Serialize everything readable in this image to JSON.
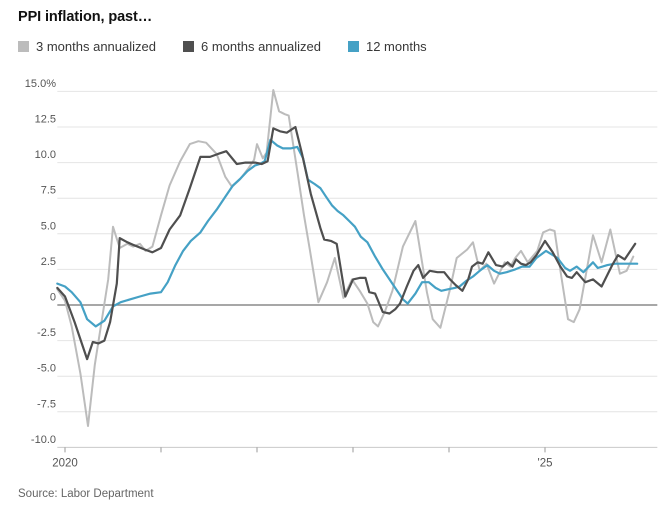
{
  "header": {
    "title": "PPI inflation, past…"
  },
  "source": {
    "text": "Source: Labor Department"
  },
  "colors": {
    "grid": "#e4e4e4",
    "zero_line": "#8a8a8a",
    "axis_line": "#c9c9c9",
    "tick": "#999999",
    "axis_label": "#555555",
    "series_3mo": "#bcbcbc",
    "series_6mo": "#4f4f4f",
    "series_12mo": "#45a1c5"
  },
  "chart_data": {
    "type": "line",
    "title": "PPI inflation, past…",
    "xlabel": "",
    "ylabel": "percent",
    "grid": "horizontal",
    "legend_position": "top",
    "ylim": [
      -10,
      15
    ],
    "xlim": [
      2019.92,
      2026.17
    ],
    "y_ticks": [
      {
        "v": 15,
        "label": "15.0%"
      },
      {
        "v": 12.5,
        "label": "12.5"
      },
      {
        "v": 10,
        "label": "10.0"
      },
      {
        "v": 7.5,
        "label": "7.5"
      },
      {
        "v": 5,
        "label": "5.0"
      },
      {
        "v": 2.5,
        "label": "2.5"
      },
      {
        "v": 0,
        "label": "0"
      },
      {
        "v": -2.5,
        "label": "-2.5"
      },
      {
        "v": -5,
        "label": "-5.0"
      },
      {
        "v": -7.5,
        "label": "-7.5"
      },
      {
        "v": -10,
        "label": "-10.0"
      }
    ],
    "x_ticks": [
      {
        "v": 2020,
        "label": "2020"
      },
      {
        "v": 2021,
        "label": ""
      },
      {
        "v": 2022,
        "label": ""
      },
      {
        "v": 2023,
        "label": ""
      },
      {
        "v": 2024,
        "label": ""
      },
      {
        "v": 2025,
        "label": "'25"
      }
    ],
    "series": [
      {
        "name": "3 months annualized",
        "color": "#bcbcbc",
        "width": 2,
        "points": [
          [
            2019.92,
            1.1
          ],
          [
            2020.0,
            0.3
          ],
          [
            2020.07,
            -1.5
          ],
          [
            2020.16,
            -4.8
          ],
          [
            2020.24,
            -8.5
          ],
          [
            2020.31,
            -4.2
          ],
          [
            2020.39,
            -0.8
          ],
          [
            2020.45,
            1.8
          ],
          [
            2020.5,
            5.5
          ],
          [
            2020.57,
            4.0
          ],
          [
            2020.65,
            4.3
          ],
          [
            2020.71,
            4.1
          ],
          [
            2020.78,
            4.3
          ],
          [
            2020.84,
            3.8
          ],
          [
            2020.91,
            4.1
          ],
          [
            2021.0,
            6.3
          ],
          [
            2021.09,
            8.4
          ],
          [
            2021.2,
            10.1
          ],
          [
            2021.3,
            11.3
          ],
          [
            2021.39,
            11.5
          ],
          [
            2021.47,
            11.4
          ],
          [
            2021.58,
            10.6
          ],
          [
            2021.67,
            9.0
          ],
          [
            2021.74,
            8.3
          ],
          [
            2021.82,
            8.8
          ],
          [
            2021.91,
            9.6
          ],
          [
            2021.97,
            10.2
          ],
          [
            2022.0,
            11.3
          ],
          [
            2022.06,
            10.3
          ],
          [
            2022.1,
            10.7
          ],
          [
            2022.17,
            15.1
          ],
          [
            2022.23,
            13.6
          ],
          [
            2022.29,
            13.4
          ],
          [
            2022.33,
            13.3
          ],
          [
            2022.42,
            9.4
          ],
          [
            2022.49,
            6.3
          ],
          [
            2022.55,
            3.9
          ],
          [
            2022.64,
            0.2
          ],
          [
            2022.73,
            1.6
          ],
          [
            2022.81,
            3.3
          ],
          [
            2022.9,
            0.5
          ],
          [
            2022.99,
            1.8
          ],
          [
            2023.07,
            1.0
          ],
          [
            2023.15,
            0.1
          ],
          [
            2023.21,
            -1.2
          ],
          [
            2023.26,
            -1.5
          ],
          [
            2023.33,
            -0.5
          ],
          [
            2023.41,
            1.0
          ],
          [
            2023.52,
            4.1
          ],
          [
            2023.65,
            5.9
          ],
          [
            2023.77,
            0.9
          ],
          [
            2023.83,
            -1.0
          ],
          [
            2023.91,
            -1.6
          ],
          [
            2024.01,
            1.1
          ],
          [
            2024.08,
            3.3
          ],
          [
            2024.19,
            3.9
          ],
          [
            2024.25,
            4.4
          ],
          [
            2024.32,
            2.4
          ],
          [
            2024.39,
            2.9
          ],
          [
            2024.47,
            1.5
          ],
          [
            2024.58,
            3.0
          ],
          [
            2024.64,
            2.7
          ],
          [
            2024.69,
            3.3
          ],
          [
            2024.75,
            3.8
          ],
          [
            2024.82,
            3.0
          ],
          [
            2024.92,
            3.8
          ],
          [
            2024.98,
            5.1
          ],
          [
            2025.05,
            5.3
          ],
          [
            2025.1,
            5.2
          ],
          [
            2025.17,
            2.0
          ],
          [
            2025.24,
            -1.0
          ],
          [
            2025.3,
            -1.2
          ],
          [
            2025.36,
            -0.3
          ],
          [
            2025.5,
            4.9
          ],
          [
            2025.59,
            3.0
          ],
          [
            2025.68,
            5.3
          ],
          [
            2025.78,
            2.2
          ],
          [
            2025.85,
            2.4
          ],
          [
            2025.92,
            3.4
          ]
        ]
      },
      {
        "name": "12 months",
        "color": "#45a1c5",
        "width": 2.2,
        "points": [
          [
            2019.92,
            1.5
          ],
          [
            2020.0,
            1.3
          ],
          [
            2020.07,
            0.9
          ],
          [
            2020.16,
            0.2
          ],
          [
            2020.23,
            -1.0
          ],
          [
            2020.32,
            -1.5
          ],
          [
            2020.41,
            -1.1
          ],
          [
            2020.5,
            -0.1
          ],
          [
            2020.58,
            0.2
          ],
          [
            2020.68,
            0.4
          ],
          [
            2020.78,
            0.6
          ],
          [
            2020.89,
            0.8
          ],
          [
            2021.0,
            0.9
          ],
          [
            2021.07,
            1.6
          ],
          [
            2021.15,
            2.8
          ],
          [
            2021.23,
            3.8
          ],
          [
            2021.31,
            4.5
          ],
          [
            2021.41,
            5.1
          ],
          [
            2021.49,
            5.9
          ],
          [
            2021.58,
            6.7
          ],
          [
            2021.67,
            7.6
          ],
          [
            2021.75,
            8.4
          ],
          [
            2021.83,
            8.9
          ],
          [
            2021.9,
            9.4
          ],
          [
            2021.98,
            9.8
          ],
          [
            2022.03,
            9.9
          ],
          [
            2022.08,
            10.1
          ],
          [
            2022.14,
            11.6
          ],
          [
            2022.21,
            11.2
          ],
          [
            2022.27,
            11.0
          ],
          [
            2022.35,
            11.0
          ],
          [
            2022.42,
            11.1
          ],
          [
            2022.48,
            10.3
          ],
          [
            2022.53,
            8.8
          ],
          [
            2022.6,
            8.5
          ],
          [
            2022.66,
            8.2
          ],
          [
            2022.72,
            7.6
          ],
          [
            2022.78,
            7.0
          ],
          [
            2022.84,
            6.6
          ],
          [
            2022.9,
            6.3
          ],
          [
            2022.96,
            5.9
          ],
          [
            2023.02,
            5.5
          ],
          [
            2023.08,
            4.8
          ],
          [
            2023.15,
            4.4
          ],
          [
            2023.23,
            3.4
          ],
          [
            2023.31,
            2.5
          ],
          [
            2023.36,
            2.0
          ],
          [
            2023.44,
            1.2
          ],
          [
            2023.52,
            0.4
          ],
          [
            2023.57,
            0.1
          ],
          [
            2023.65,
            0.8
          ],
          [
            2023.72,
            1.6
          ],
          [
            2023.79,
            1.6
          ],
          [
            2023.86,
            1.2
          ],
          [
            2023.92,
            1.0
          ],
          [
            2023.99,
            1.1
          ],
          [
            2024.06,
            1.2
          ],
          [
            2024.11,
            1.3
          ],
          [
            2024.18,
            1.7
          ],
          [
            2024.25,
            2.0
          ],
          [
            2024.32,
            2.4
          ],
          [
            2024.4,
            2.8
          ],
          [
            2024.47,
            2.4
          ],
          [
            2024.53,
            2.2
          ],
          [
            2024.6,
            2.3
          ],
          [
            2024.69,
            2.5
          ],
          [
            2024.76,
            2.7
          ],
          [
            2024.84,
            2.7
          ],
          [
            2024.91,
            3.3
          ],
          [
            2025.01,
            3.8
          ],
          [
            2025.13,
            3.3
          ],
          [
            2025.21,
            2.6
          ],
          [
            2025.26,
            2.4
          ],
          [
            2025.33,
            2.7
          ],
          [
            2025.4,
            2.3
          ],
          [
            2025.5,
            3.0
          ],
          [
            2025.55,
            2.6
          ],
          [
            2025.65,
            2.8
          ],
          [
            2025.73,
            2.9
          ],
          [
            2025.83,
            2.9
          ],
          [
            2025.96,
            2.9
          ]
        ]
      },
      {
        "name": "6 months annualized",
        "color": "#4f4f4f",
        "width": 2.2,
        "points": [
          [
            2019.92,
            1.2
          ],
          [
            2020.0,
            0.6
          ],
          [
            2020.05,
            -0.3
          ],
          [
            2020.1,
            -1.2
          ],
          [
            2020.23,
            -3.8
          ],
          [
            2020.29,
            -2.6
          ],
          [
            2020.35,
            -2.7
          ],
          [
            2020.41,
            -2.5
          ],
          [
            2020.47,
            -1.2
          ],
          [
            2020.54,
            1.5
          ],
          [
            2020.57,
            4.7
          ],
          [
            2020.65,
            4.4
          ],
          [
            2020.72,
            4.2
          ],
          [
            2020.83,
            3.9
          ],
          [
            2020.91,
            3.7
          ],
          [
            2021.0,
            4.0
          ],
          [
            2021.09,
            5.3
          ],
          [
            2021.2,
            6.3
          ],
          [
            2021.3,
            8.2
          ],
          [
            2021.41,
            10.4
          ],
          [
            2021.51,
            10.4
          ],
          [
            2021.59,
            10.6
          ],
          [
            2021.68,
            10.8
          ],
          [
            2021.79,
            9.9
          ],
          [
            2021.88,
            10.0
          ],
          [
            2021.98,
            10.0
          ],
          [
            2022.05,
            9.9
          ],
          [
            2022.11,
            10.1
          ],
          [
            2022.17,
            12.4
          ],
          [
            2022.24,
            12.2
          ],
          [
            2022.31,
            12.1
          ],
          [
            2022.4,
            12.5
          ],
          [
            2022.47,
            10.6
          ],
          [
            2022.56,
            7.8
          ],
          [
            2022.66,
            5.4
          ],
          [
            2022.7,
            4.6
          ],
          [
            2022.77,
            4.5
          ],
          [
            2022.83,
            4.3
          ],
          [
            2022.92,
            0.6
          ],
          [
            2023.0,
            1.8
          ],
          [
            2023.07,
            1.9
          ],
          [
            2023.13,
            1.9
          ],
          [
            2023.17,
            0.9
          ],
          [
            2023.23,
            0.8
          ],
          [
            2023.31,
            -0.5
          ],
          [
            2023.38,
            -0.6
          ],
          [
            2023.44,
            -0.3
          ],
          [
            2023.49,
            0.1
          ],
          [
            2023.56,
            1.3
          ],
          [
            2023.63,
            2.4
          ],
          [
            2023.68,
            2.8
          ],
          [
            2023.73,
            1.9
          ],
          [
            2023.8,
            2.4
          ],
          [
            2023.88,
            2.3
          ],
          [
            2023.95,
            2.3
          ],
          [
            2024.01,
            1.8
          ],
          [
            2024.07,
            1.4
          ],
          [
            2024.14,
            1.0
          ],
          [
            2024.2,
            1.8
          ],
          [
            2024.24,
            2.7
          ],
          [
            2024.3,
            3.0
          ],
          [
            2024.35,
            2.9
          ],
          [
            2024.41,
            3.7
          ],
          [
            2024.49,
            2.8
          ],
          [
            2024.56,
            2.7
          ],
          [
            2024.61,
            3.0
          ],
          [
            2024.66,
            2.7
          ],
          [
            2024.7,
            3.2
          ],
          [
            2024.75,
            2.9
          ],
          [
            2024.8,
            2.8
          ],
          [
            2024.85,
            3.0
          ],
          [
            2024.91,
            3.5
          ],
          [
            2025.0,
            4.5
          ],
          [
            2025.08,
            3.7
          ],
          [
            2025.16,
            2.7
          ],
          [
            2025.23,
            2.0
          ],
          [
            2025.28,
            1.9
          ],
          [
            2025.33,
            2.3
          ],
          [
            2025.42,
            1.6
          ],
          [
            2025.5,
            1.8
          ],
          [
            2025.59,
            1.3
          ],
          [
            2025.7,
            2.8
          ],
          [
            2025.76,
            3.5
          ],
          [
            2025.83,
            3.2
          ],
          [
            2025.94,
            4.3
          ]
        ]
      }
    ]
  },
  "legend": {
    "items": [
      {
        "label": "3 months annualized",
        "color": "#bcbcbc"
      },
      {
        "label": "6 months annualized",
        "color": "#4f4f4f"
      },
      {
        "label": "12 months",
        "color": "#45a1c5"
      }
    ]
  }
}
